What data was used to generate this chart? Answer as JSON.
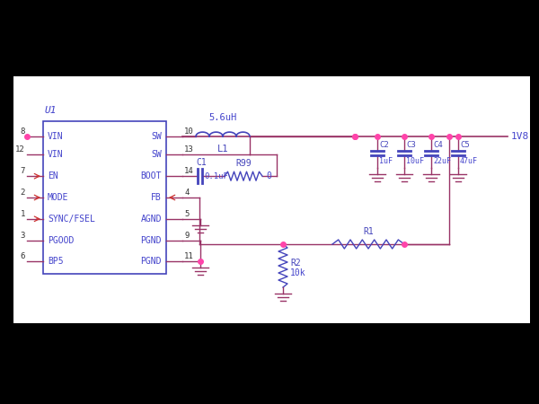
{
  "bg_color": "#000000",
  "circuit_bg": "#ffffff",
  "wire_color": "#993366",
  "comp_color": "#4444BB",
  "dot_color": "#FF44AA",
  "blue_text": "#4444CC",
  "dark_text": "#333333",
  "red_color": "#CC3333",
  "ic_label": "U1",
  "voltage_label": "1V8",
  "inductor_label": "5.6uH",
  "inductor_name": "L1",
  "cap_boot_name": "C1",
  "cap_boot_val": "0.1uF",
  "r99_name": "R99",
  "r99_val": "0",
  "r1_name": "R1",
  "r2_name": "R2",
  "r2_val": "10k",
  "caps": [
    {
      "name": "C2",
      "val": "1uF"
    },
    {
      "name": "C3",
      "val": "10uF"
    },
    {
      "name": "C4",
      "val": "22uF"
    },
    {
      "name": "C5",
      "val": "47uF"
    }
  ],
  "left_pins": [
    {
      "num": "8",
      "name": "VIN",
      "arrow": false
    },
    {
      "num": "12",
      "name": "VIN",
      "arrow": false
    },
    {
      "num": "7",
      "name": "EN",
      "arrow": true
    },
    {
      "num": "2",
      "name": "MODE",
      "arrow": true
    },
    {
      "num": "1",
      "name": "SYNC/FSEL",
      "arrow": true
    },
    {
      "num": "3",
      "name": "PGOOD",
      "arrow": false
    },
    {
      "num": "6",
      "name": "BP5",
      "arrow": false
    }
  ],
  "right_pins": [
    {
      "num": "10",
      "name": "SW",
      "arrow": false
    },
    {
      "num": "13",
      "name": "SW",
      "arrow": false
    },
    {
      "num": "14",
      "name": "BOOT",
      "arrow": false
    },
    {
      "num": "4",
      "name": "FB",
      "arrow": true
    },
    {
      "num": "5",
      "name": "AGND",
      "arrow": false
    },
    {
      "num": "9",
      "name": "PGND",
      "arrow": false
    },
    {
      "num": "11",
      "name": "PGND",
      "arrow": false
    }
  ]
}
